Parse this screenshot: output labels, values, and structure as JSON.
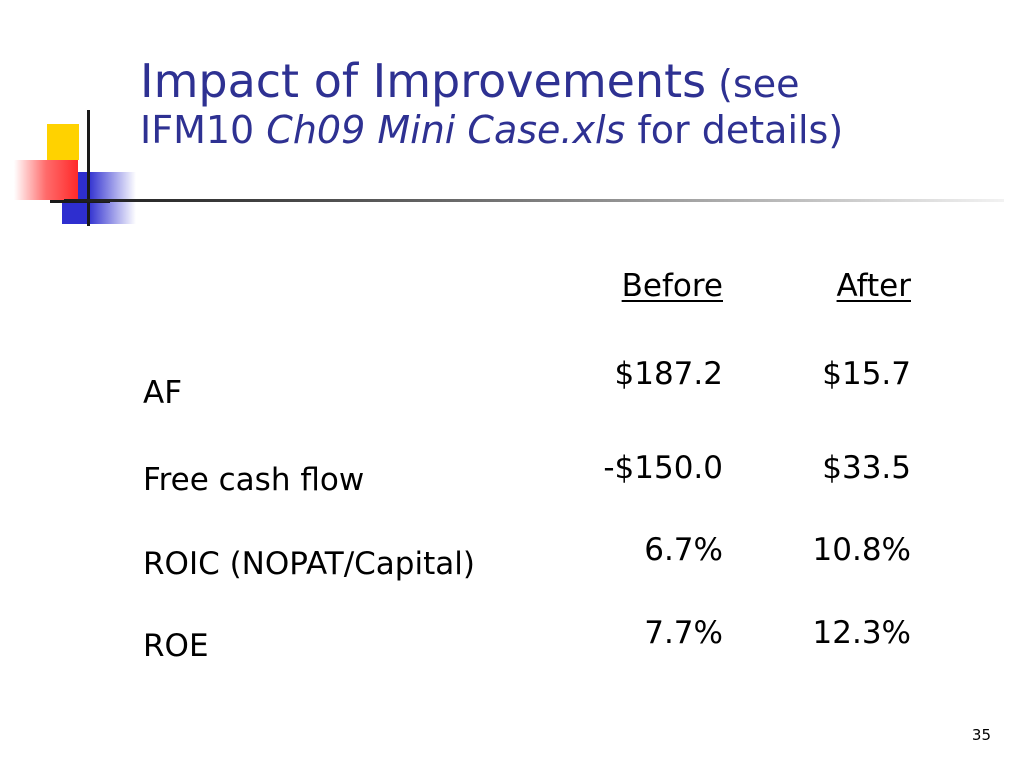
{
  "title": {
    "main": "Impact of Improvements",
    "paren_open": " (see",
    "line2_prefix": "IFM10 ",
    "filename": "Ch09 Mini Case.xls",
    "line2_suffix": " for details)"
  },
  "table": {
    "columns": [
      "Before",
      "After"
    ],
    "rows": [
      {
        "label": "AF",
        "before": "$187.2",
        "after": "$15.7"
      },
      {
        "label": "Free cash flow",
        "before": "-$150.0",
        "after": "$33.5"
      },
      {
        "label": "ROIC (NOPAT/Capital)",
        "before": "6.7%",
        "after": "10.8%"
      },
      {
        "label": "ROE",
        "before": "7.7%",
        "after": "12.3%"
      }
    ]
  },
  "slide_number": "35",
  "colors": {
    "title": "#2e3192",
    "logo_yellow": "#ffd200",
    "logo_blue": "#2e2ecf",
    "logo_red": "#ff2a2a"
  }
}
